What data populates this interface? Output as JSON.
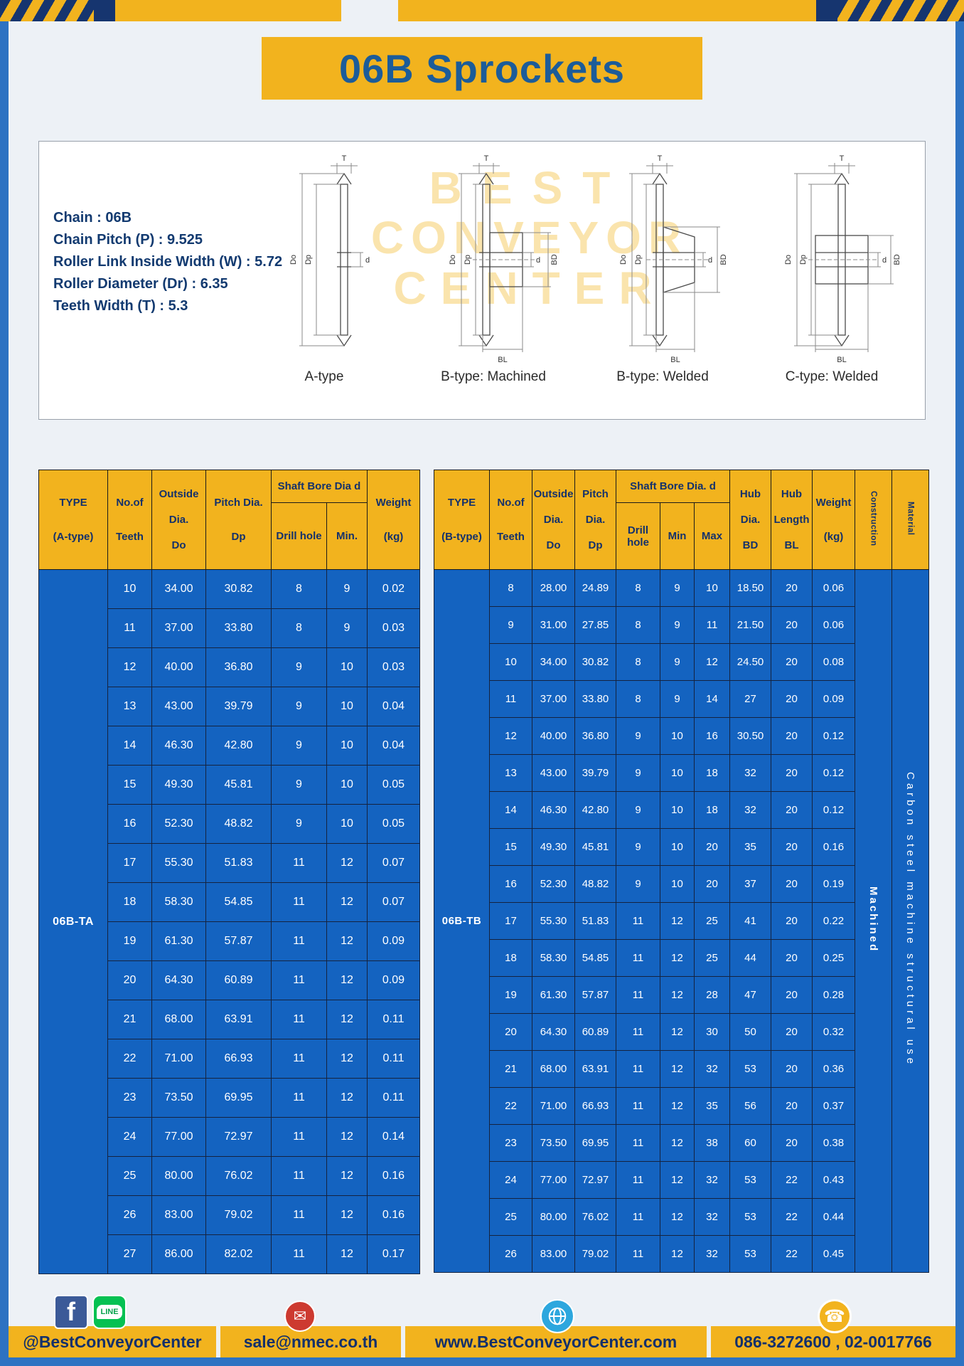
{
  "page": {
    "title": "06B Sprockets"
  },
  "colors": {
    "yellow": "#F2B31E",
    "table_blue": "#1463C0",
    "navy_text": "#14316B",
    "title_blue": "#1C5C99",
    "frame_blue": "#2E72C2",
    "email_red": "#CD3A30",
    "line_green": "#06C152",
    "facebook_blue": "#3B5A98",
    "globe_blue": "#2DA7DE"
  },
  "specs": {
    "lines": [
      "Chain : 06B",
      "Chain Pitch (P) : 9.525",
      "Roller Link Inside Width (W) : 5.72",
      "Roller Diameter (Dr) : 6.35",
      "Teeth Width (T) : 5.3"
    ]
  },
  "watermark": {
    "line1": "BEST",
    "line2": "CONVEYOR",
    "line3": "CENTER"
  },
  "diagrams": {
    "labels": [
      "A-type",
      "B-type: Machined",
      "B-type: Welded",
      "C-type: Welded"
    ],
    "dims": {
      "T": "T",
      "Do": "Do",
      "Dp": "Dp",
      "d": "d",
      "BD": "BD",
      "BL": "BL"
    }
  },
  "table_a": {
    "type_line1": "TYPE",
    "type_line2": "(A-type)",
    "teeth_line1": "No.of",
    "teeth_line2": "Teeth",
    "outside_line1": "Outside",
    "outside_line2": "Dia.",
    "outside_line3": "Do",
    "pitch_line1": "Pitch Dia.",
    "pitch_line2": "Dp",
    "shaft_group": "Shaft Bore Dia d",
    "drill": "Drill hole",
    "min": "Min.",
    "weight_line1": "Weight",
    "weight_line2": "(kg)",
    "type_value": "06B-TA",
    "rows": [
      [
        "10",
        "34.00",
        "30.82",
        "8",
        "9",
        "0.02"
      ],
      [
        "11",
        "37.00",
        "33.80",
        "8",
        "9",
        "0.03"
      ],
      [
        "12",
        "40.00",
        "36.80",
        "9",
        "10",
        "0.03"
      ],
      [
        "13",
        "43.00",
        "39.79",
        "9",
        "10",
        "0.04"
      ],
      [
        "14",
        "46.30",
        "42.80",
        "9",
        "10",
        "0.04"
      ],
      [
        "15",
        "49.30",
        "45.81",
        "9",
        "10",
        "0.05"
      ],
      [
        "16",
        "52.30",
        "48.82",
        "9",
        "10",
        "0.05"
      ],
      [
        "17",
        "55.30",
        "51.83",
        "11",
        "12",
        "0.07"
      ],
      [
        "18",
        "58.30",
        "54.85",
        "11",
        "12",
        "0.07"
      ],
      [
        "19",
        "61.30",
        "57.87",
        "11",
        "12",
        "0.09"
      ],
      [
        "20",
        "64.30",
        "60.89",
        "11",
        "12",
        "0.09"
      ],
      [
        "21",
        "68.00",
        "63.91",
        "11",
        "12",
        "0.11"
      ],
      [
        "22",
        "71.00",
        "66.93",
        "11",
        "12",
        "0.11"
      ],
      [
        "23",
        "73.50",
        "69.95",
        "11",
        "12",
        "0.11"
      ],
      [
        "24",
        "77.00",
        "72.97",
        "11",
        "12",
        "0.14"
      ],
      [
        "25",
        "80.00",
        "76.02",
        "11",
        "12",
        "0.16"
      ],
      [
        "26",
        "83.00",
        "79.02",
        "11",
        "12",
        "0.16"
      ],
      [
        "27",
        "86.00",
        "82.02",
        "11",
        "12",
        "0.17"
      ]
    ]
  },
  "table_b": {
    "type_line1": "TYPE",
    "type_line2": "(B-type)",
    "teeth_line1": "No.of",
    "teeth_line2": "Teeth",
    "outside_line1": "Outside",
    "outside_line2": "Dia.",
    "outside_line3": "Do",
    "pitch_line1": "Pitch",
    "pitch_line2": "Dia.",
    "pitch_line3": "Dp",
    "shaft_group": "Shaft Bore Dia. d",
    "drill": "Drill hole",
    "min": "Min",
    "max": "Max",
    "hubdia_line1": "Hub",
    "hubdia_line2": "Dia.",
    "hubdia_line3": "BD",
    "hublen_line1": "Hub",
    "hublen_line2": "Length",
    "hublen_line3": "BL",
    "weight_line1": "Weight",
    "weight_line2": "(kg)",
    "construction": "Construction",
    "material": "Material",
    "type_value": "06B-TB",
    "construction_value": "Machined",
    "material_value": "Carbon steel machine structural use",
    "rows": [
      [
        "8",
        "28.00",
        "24.89",
        "8",
        "9",
        "10",
        "18.50",
        "20",
        "0.06"
      ],
      [
        "9",
        "31.00",
        "27.85",
        "8",
        "9",
        "11",
        "21.50",
        "20",
        "0.06"
      ],
      [
        "10",
        "34.00",
        "30.82",
        "8",
        "9",
        "12",
        "24.50",
        "20",
        "0.08"
      ],
      [
        "11",
        "37.00",
        "33.80",
        "8",
        "9",
        "14",
        "27",
        "20",
        "0.09"
      ],
      [
        "12",
        "40.00",
        "36.80",
        "9",
        "10",
        "16",
        "30.50",
        "20",
        "0.12"
      ],
      [
        "13",
        "43.00",
        "39.79",
        "9",
        "10",
        "18",
        "32",
        "20",
        "0.12"
      ],
      [
        "14",
        "46.30",
        "42.80",
        "9",
        "10",
        "18",
        "32",
        "20",
        "0.12"
      ],
      [
        "15",
        "49.30",
        "45.81",
        "9",
        "10",
        "20",
        "35",
        "20",
        "0.16"
      ],
      [
        "16",
        "52.30",
        "48.82",
        "9",
        "10",
        "20",
        "37",
        "20",
        "0.19"
      ],
      [
        "17",
        "55.30",
        "51.83",
        "11",
        "12",
        "25",
        "41",
        "20",
        "0.22"
      ],
      [
        "18",
        "58.30",
        "54.85",
        "11",
        "12",
        "25",
        "44",
        "20",
        "0.25"
      ],
      [
        "19",
        "61.30",
        "57.87",
        "11",
        "12",
        "28",
        "47",
        "20",
        "0.28"
      ],
      [
        "20",
        "64.30",
        "60.89",
        "11",
        "12",
        "30",
        "50",
        "20",
        "0.32"
      ],
      [
        "21",
        "68.00",
        "63.91",
        "11",
        "12",
        "32",
        "53",
        "20",
        "0.36"
      ],
      [
        "22",
        "71.00",
        "66.93",
        "11",
        "12",
        "35",
        "56",
        "20",
        "0.37"
      ],
      [
        "23",
        "73.50",
        "69.95",
        "11",
        "12",
        "38",
        "60",
        "20",
        "0.38"
      ],
      [
        "24",
        "77.00",
        "72.97",
        "11",
        "12",
        "32",
        "53",
        "22",
        "0.43"
      ],
      [
        "25",
        "80.00",
        "76.02",
        "11",
        "12",
        "32",
        "53",
        "22",
        "0.44"
      ],
      [
        "26",
        "83.00",
        "79.02",
        "11",
        "12",
        "32",
        "53",
        "22",
        "0.45"
      ]
    ]
  },
  "footer": {
    "items": [
      "@BestConveyorCenter",
      "sale@nmec.co.th",
      "www.BestConveyorCenter.com",
      "086-3272600 , 02-0017766"
    ],
    "icons": {
      "facebook": "f",
      "line": "LINE",
      "email": "✉",
      "phone": "☎"
    }
  }
}
